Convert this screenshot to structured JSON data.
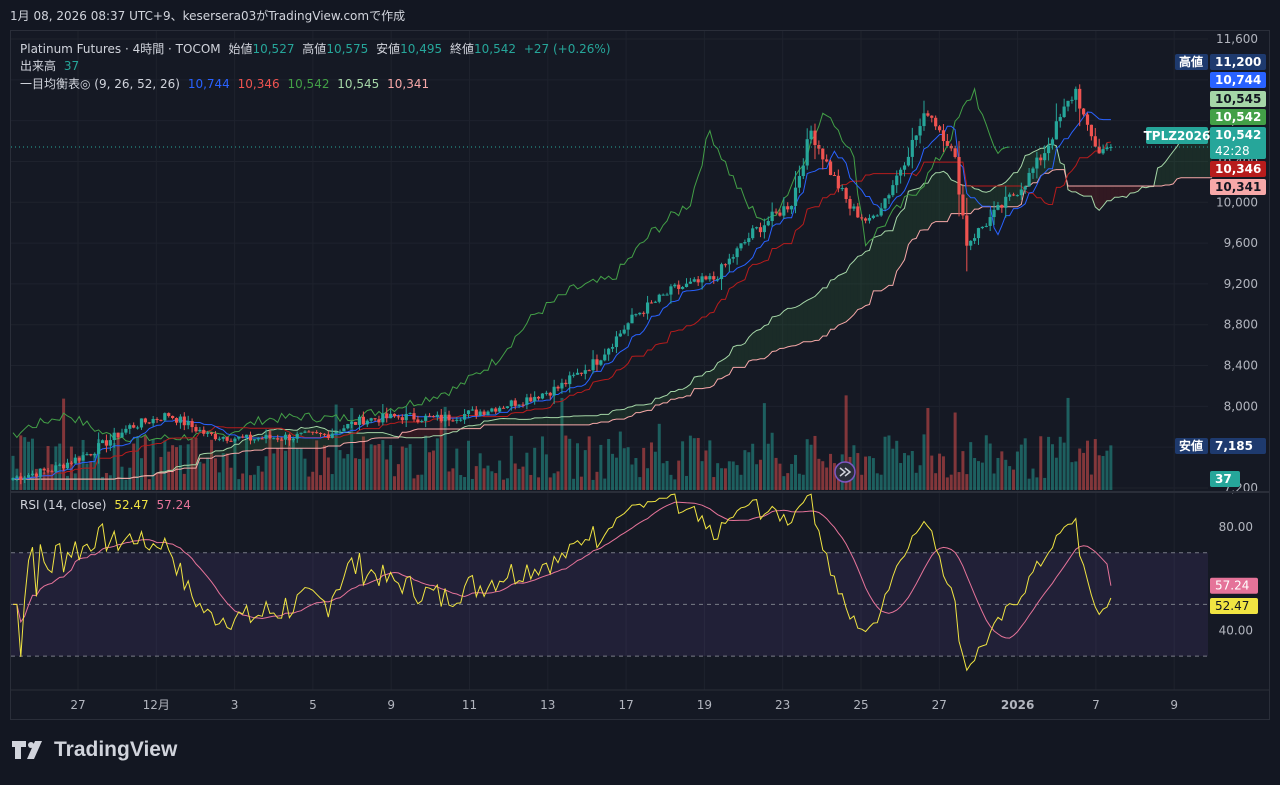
{
  "caption": "1月 08, 2026 08:37 UTC+9、kesersera03がTradingView.comで作成",
  "legend": {
    "symbol_title": "Platinum Futures · 4時間 · TOCOM",
    "open_label": "始値",
    "open": "10,527",
    "high_label": "高値",
    "high": "10,575",
    "low_label": "安値",
    "low": "10,495",
    "close_label": "終値",
    "close": "10,542",
    "change": "+27 (+0.26%)",
    "volume_label": "出来高",
    "volume": "37",
    "ichimoku_label": "一目均衡表◎ (9, 26, 52, 26)",
    "ichimoku_values": [
      "10,744",
      "10,346",
      "10,542",
      "10,545",
      "10,341"
    ],
    "rsi_label": "RSI (14, close)",
    "rsi_value": "52.47",
    "rsi_ma_value": "57.24"
  },
  "colors": {
    "background": "#131722",
    "up": "#26a69a",
    "down": "#ef5350",
    "tenkan": "#2962ff",
    "kijun": "#b71c1c",
    "chikou": "#43a047",
    "span_a": "#a5d6a7",
    "span_b": "#f7a8a8",
    "rsi": "#f0e442",
    "rsi_ma": "#e57399"
  },
  "chart_data": [
    {
      "type": "candlestick",
      "title": "Platinum Futures · 4時間 · TOCOM",
      "x_ticks": [
        "27",
        "12月",
        "3",
        "5",
        "9",
        "11",
        "13",
        "17",
        "19",
        "23",
        "25",
        "27",
        "2026",
        "7",
        "9"
      ],
      "y_ticks": [
        "11,600",
        "11,200",
        "10,800",
        "10,400",
        "10,000",
        "9,600",
        "9,200",
        "8,800",
        "8,400",
        "8,000",
        "7,600",
        "7,200"
      ],
      "ylim": [
        7200,
        11600
      ],
      "last_close": 10542,
      "price_labels": [
        {
          "name": "高値",
          "value": "11,200"
        },
        {
          "name": "",
          "value": "10,744"
        },
        {
          "name": "",
          "value": "10,545"
        },
        {
          "name": "",
          "value": "10,542"
        },
        {
          "name": "TPLZ2026",
          "value": "10,542",
          "countdown": "42:28"
        },
        {
          "name": "",
          "value": "10,346"
        },
        {
          "name": "",
          "value": "10,341"
        },
        {
          "name": "安値",
          "value": "7,185"
        },
        {
          "name": "",
          "value": "37"
        }
      ],
      "key_points": [
        {
          "x": 0,
          "close": 7300
        },
        {
          "x": 10,
          "close": 7380
        },
        {
          "x": 20,
          "close": 7550
        },
        {
          "x": 30,
          "close": 7800
        },
        {
          "x": 40,
          "close": 7920
        },
        {
          "x": 50,
          "close": 7720
        },
        {
          "x": 60,
          "close": 7680
        },
        {
          "x": 70,
          "close": 7700
        },
        {
          "x": 80,
          "close": 7720
        },
        {
          "x": 90,
          "close": 7870
        },
        {
          "x": 100,
          "close": 7900
        },
        {
          "x": 110,
          "close": 7880
        },
        {
          "x": 120,
          "close": 7950
        },
        {
          "x": 130,
          "close": 8050
        },
        {
          "x": 140,
          "close": 8180
        },
        {
          "x": 150,
          "close": 8450
        },
        {
          "x": 160,
          "close": 8900
        },
        {
          "x": 170,
          "close": 9150
        },
        {
          "x": 180,
          "close": 9250
        },
        {
          "x": 190,
          "close": 9700
        },
        {
          "x": 200,
          "close": 10000
        },
        {
          "x": 205,
          "close": 10700
        },
        {
          "x": 210,
          "close": 10300
        },
        {
          "x": 215,
          "close": 9950
        },
        {
          "x": 220,
          "close": 9800
        },
        {
          "x": 225,
          "close": 10100
        },
        {
          "x": 230,
          "close": 10500
        },
        {
          "x": 235,
          "close": 10900
        },
        {
          "x": 240,
          "close": 10600
        },
        {
          "x": 242,
          "close": 10400
        },
        {
          "x": 245,
          "close": 9600
        },
        {
          "x": 250,
          "close": 9800
        },
        {
          "x": 255,
          "close": 10000
        },
        {
          "x": 260,
          "close": 10200
        },
        {
          "x": 265,
          "close": 10500
        },
        {
          "x": 270,
          "close": 10900
        },
        {
          "x": 273,
          "close": 11100
        },
        {
          "x": 276,
          "close": 10700
        },
        {
          "x": 279,
          "close": 10500
        },
        {
          "x": 282,
          "close": 10542
        }
      ]
    },
    {
      "type": "line",
      "title": "RSI (14, close)",
      "y_ticks": [
        "80.00",
        "40.00"
      ],
      "ylim": [
        20,
        90
      ],
      "series": [
        {
          "name": "RSI",
          "last": 52.47
        },
        {
          "name": "RSI MA",
          "last": 57.24
        }
      ]
    }
  ],
  "logo_text": "TradingView"
}
